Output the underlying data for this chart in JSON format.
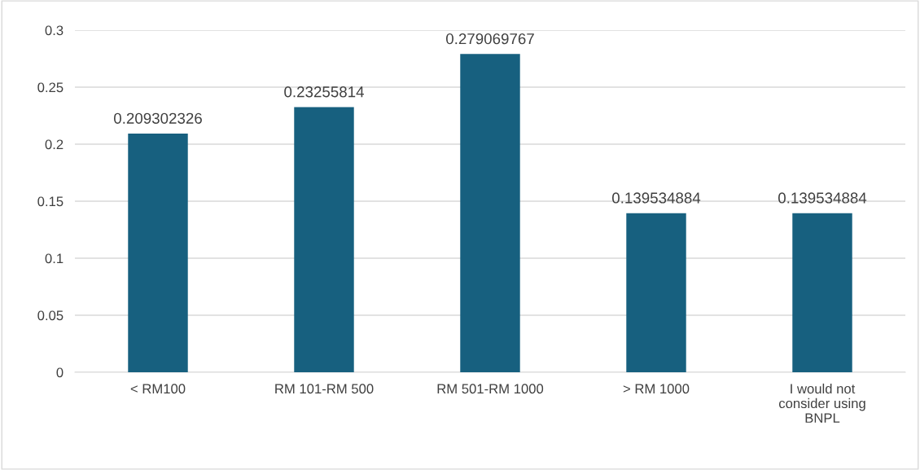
{
  "chart_data": {
    "type": "bar",
    "categories": [
      "< RM100",
      "RM 101-RM 500",
      "RM 501-RM 1000",
      "> RM 1000",
      "I would not consider using BNPL"
    ],
    "values": [
      0.209302326,
      0.23255814,
      0.279069767,
      0.139534884,
      0.139534884
    ],
    "color": "#17607f",
    "ylim": [
      0,
      0.3
    ],
    "yticks": [
      0,
      0.05,
      0.1,
      0.15,
      0.2,
      0.25,
      0.3
    ],
    "grid": "y",
    "data_labels": true
  }
}
